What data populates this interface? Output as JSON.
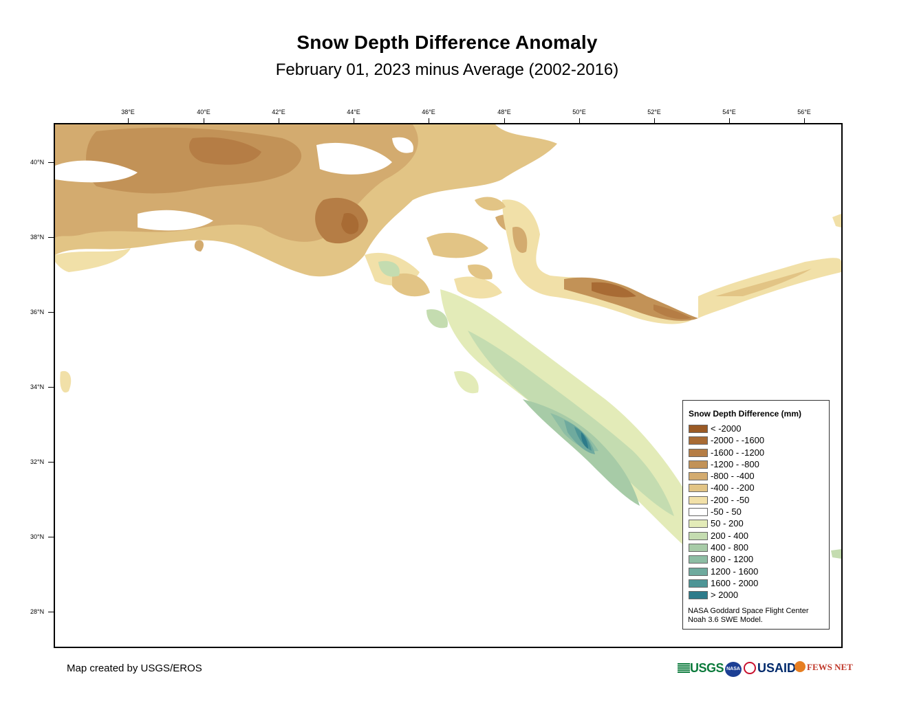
{
  "title": "Snow Depth Difference Anomaly",
  "subtitle": "February 01, 2023 minus Average (2002-2016)",
  "axes": {
    "lon_labels": [
      "38°E",
      "40°E",
      "42°E",
      "44°E",
      "46°E",
      "48°E",
      "50°E",
      "52°E",
      "54°E",
      "56°E"
    ],
    "lat_labels": [
      "40°N",
      "38°N",
      "36°N",
      "34°N",
      "32°N",
      "30°N",
      "28°N"
    ]
  },
  "legend": {
    "title": "Snow Depth Difference (mm)",
    "items": [
      {
        "label": "< -2000",
        "color": "#9a5a25"
      },
      {
        "label": "-2000 - -1600",
        "color": "#a86b34"
      },
      {
        "label": "-1600 - -1200",
        "color": "#b57d45"
      },
      {
        "label": "-1200 - -800",
        "color": "#c29257"
      },
      {
        "label": "-800 - -400",
        "color": "#d3ab6f"
      },
      {
        "label": "-400 - -200",
        "color": "#e2c485"
      },
      {
        "label": "-200 - -50",
        "color": "#f1e0a8"
      },
      {
        "label": "-50 - 50",
        "color": "#ffffff"
      },
      {
        "label": "50 - 200",
        "color": "#e3ebb8"
      },
      {
        "label": "200 - 400",
        "color": "#c4dcb0"
      },
      {
        "label": "400 - 800",
        "color": "#a7cba7"
      },
      {
        "label": "800 - 1200",
        "color": "#8dbda4"
      },
      {
        "label": "1200 - 1600",
        "color": "#6faa9e"
      },
      {
        "label": "1600 - 2000",
        "color": "#4e9596"
      },
      {
        "label": "> 2000",
        "color": "#2d7b8a"
      }
    ],
    "credit": [
      "NASA Goddard Space Flight Center",
      "Noah 3.6 SWE Model."
    ]
  },
  "footer": {
    "map_credit": "Map created by USGS/EROS",
    "logos": [
      "USGS",
      "NASA",
      "USAID",
      "FEWS NET"
    ]
  }
}
